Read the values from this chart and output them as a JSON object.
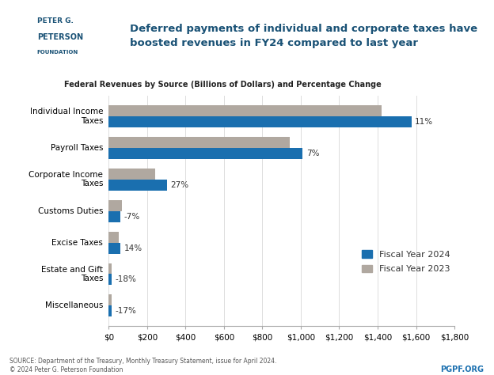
{
  "categories": [
    "Individual Income\nTaxes",
    "Payroll Taxes",
    "Corporate Income\nTaxes",
    "Customs Duties",
    "Excise Taxes",
    "Estate and Gift\nTaxes",
    "Miscellaneous"
  ],
  "fy2024": [
    1576,
    1010,
    305,
    62,
    62,
    14,
    14
  ],
  "fy2023": [
    1420,
    944,
    240,
    67,
    54,
    17,
    17
  ],
  "pct_change": [
    "11%",
    "7%",
    "27%",
    "-7%",
    "14%",
    "-18%",
    "-17%"
  ],
  "color_2024": "#1a6faf",
  "color_2023": "#b0a8a0",
  "title_main": "Deferred payments of individual and corporate taxes have\nboosted revenues in FY24 compared to last year",
  "subtitle": "Federal Revenues by Source (Billions of Dollars) and Percentage Change",
  "xlim": [
    0,
    1800
  ],
  "xticks": [
    0,
    200,
    400,
    600,
    800,
    1000,
    1200,
    1400,
    1600,
    1800
  ],
  "xticklabels": [
    "$0",
    "$200",
    "$400",
    "$600",
    "$800",
    "$1,000",
    "$1,200",
    "$1,400",
    "$1,600",
    "$1,800"
  ],
  "source_text": "SOURCE: Department of the Treasury, Monthly Treasury Statement, issue for April 2024.\n© 2024 Peter G. Peterson Foundation",
  "pgpf_text": "PGPF.ORG",
  "legend_2024": "Fiscal Year 2024",
  "legend_2023": "Fiscal Year 2023",
  "background_color": "#ffffff",
  "header_bg": "#dce9f5",
  "logo_blue": "#1a5276",
  "logo_icon_bg": "#1a6faf"
}
